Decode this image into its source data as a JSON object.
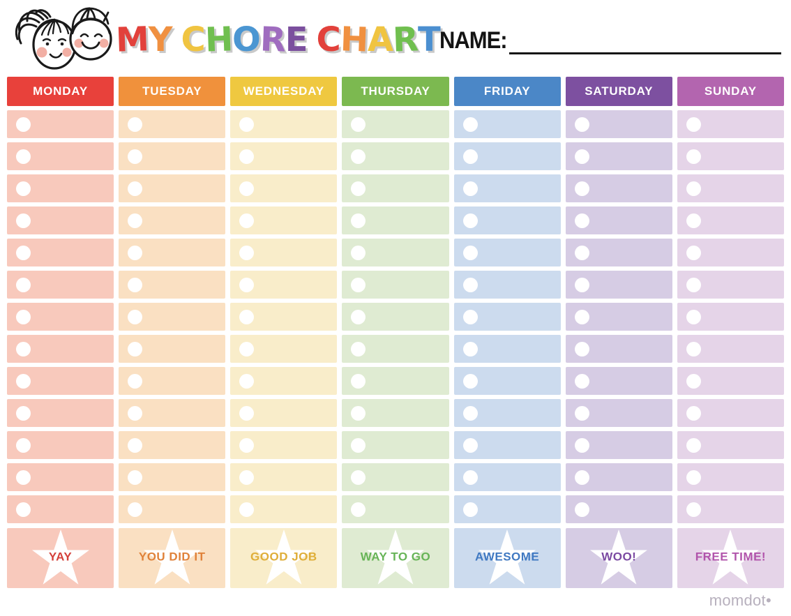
{
  "header": {
    "illustration": "two-kids-faces-line-art",
    "title_text": "MY CHORE CHART",
    "title_shadow_color": "#c9c9c9",
    "title_letters": [
      {
        "char": "M",
        "color": "#E2413B"
      },
      {
        "char": "Y",
        "color": "#F09040"
      },
      {
        "char": " "
      },
      {
        "char": "C",
        "color": "#F0C441"
      },
      {
        "char": "H",
        "color": "#70BF4F"
      },
      {
        "char": "O",
        "color": "#4B96D2"
      },
      {
        "char": "R",
        "color": "#9F6CBF"
      },
      {
        "char": "E",
        "color": "#7B4F9E"
      },
      {
        "char": " "
      },
      {
        "char": "C",
        "color": "#E2413B"
      },
      {
        "char": "H",
        "color": "#F09040"
      },
      {
        "char": "A",
        "color": "#F0C441"
      },
      {
        "char": "R",
        "color": "#70BF4F"
      },
      {
        "char": "T",
        "color": "#4B8FD0"
      }
    ],
    "name_field": {
      "label": "NAME:",
      "value": ""
    }
  },
  "rows_per_day": 13,
  "days": [
    {
      "label": "MONDAY",
      "header_color": "#E8413B",
      "cell_color": "#F8C9BC",
      "footer_label": "YAY",
      "footer_color": "#D4403A"
    },
    {
      "label": "TUESDAY",
      "header_color": "#F0913C",
      "cell_color": "#FAE0C2",
      "footer_label": "YOU DID IT",
      "footer_color": "#E0823A"
    },
    {
      "label": "WEDNESDAY",
      "header_color": "#EFC840",
      "cell_color": "#F9EDCA",
      "footer_label": "GOOD JOB",
      "footer_color": "#DFAE39"
    },
    {
      "label": "THURSDAY",
      "header_color": "#7CB950",
      "cell_color": "#DFEBD2",
      "footer_label": "WAY TO GO",
      "footer_color": "#67B457"
    },
    {
      "label": "FRIDAY",
      "header_color": "#4B87C7",
      "cell_color": "#CCDBEE",
      "footer_label": "AWESOME",
      "footer_color": "#4079C2"
    },
    {
      "label": "SATURDAY",
      "header_color": "#7D50A0",
      "cell_color": "#D6CCE4",
      "footer_label": "WOO!",
      "footer_color": "#7B4AA2"
    },
    {
      "label": "SUNDAY",
      "header_color": "#B365AF",
      "cell_color": "#E5D4E8",
      "footer_label": "FREE TIME!",
      "footer_color": "#B154AB"
    }
  ],
  "watermark": {
    "text": "momdot",
    "dot": "•"
  },
  "colors": {
    "page_background": "#ffffff",
    "check_circle": "#ffffff",
    "star": "#ffffff",
    "name_line": "#141414",
    "watermark_text": "#b7b0bd",
    "cheek_pink": "#F2AFA4",
    "line_art": "#1a1a1a"
  }
}
